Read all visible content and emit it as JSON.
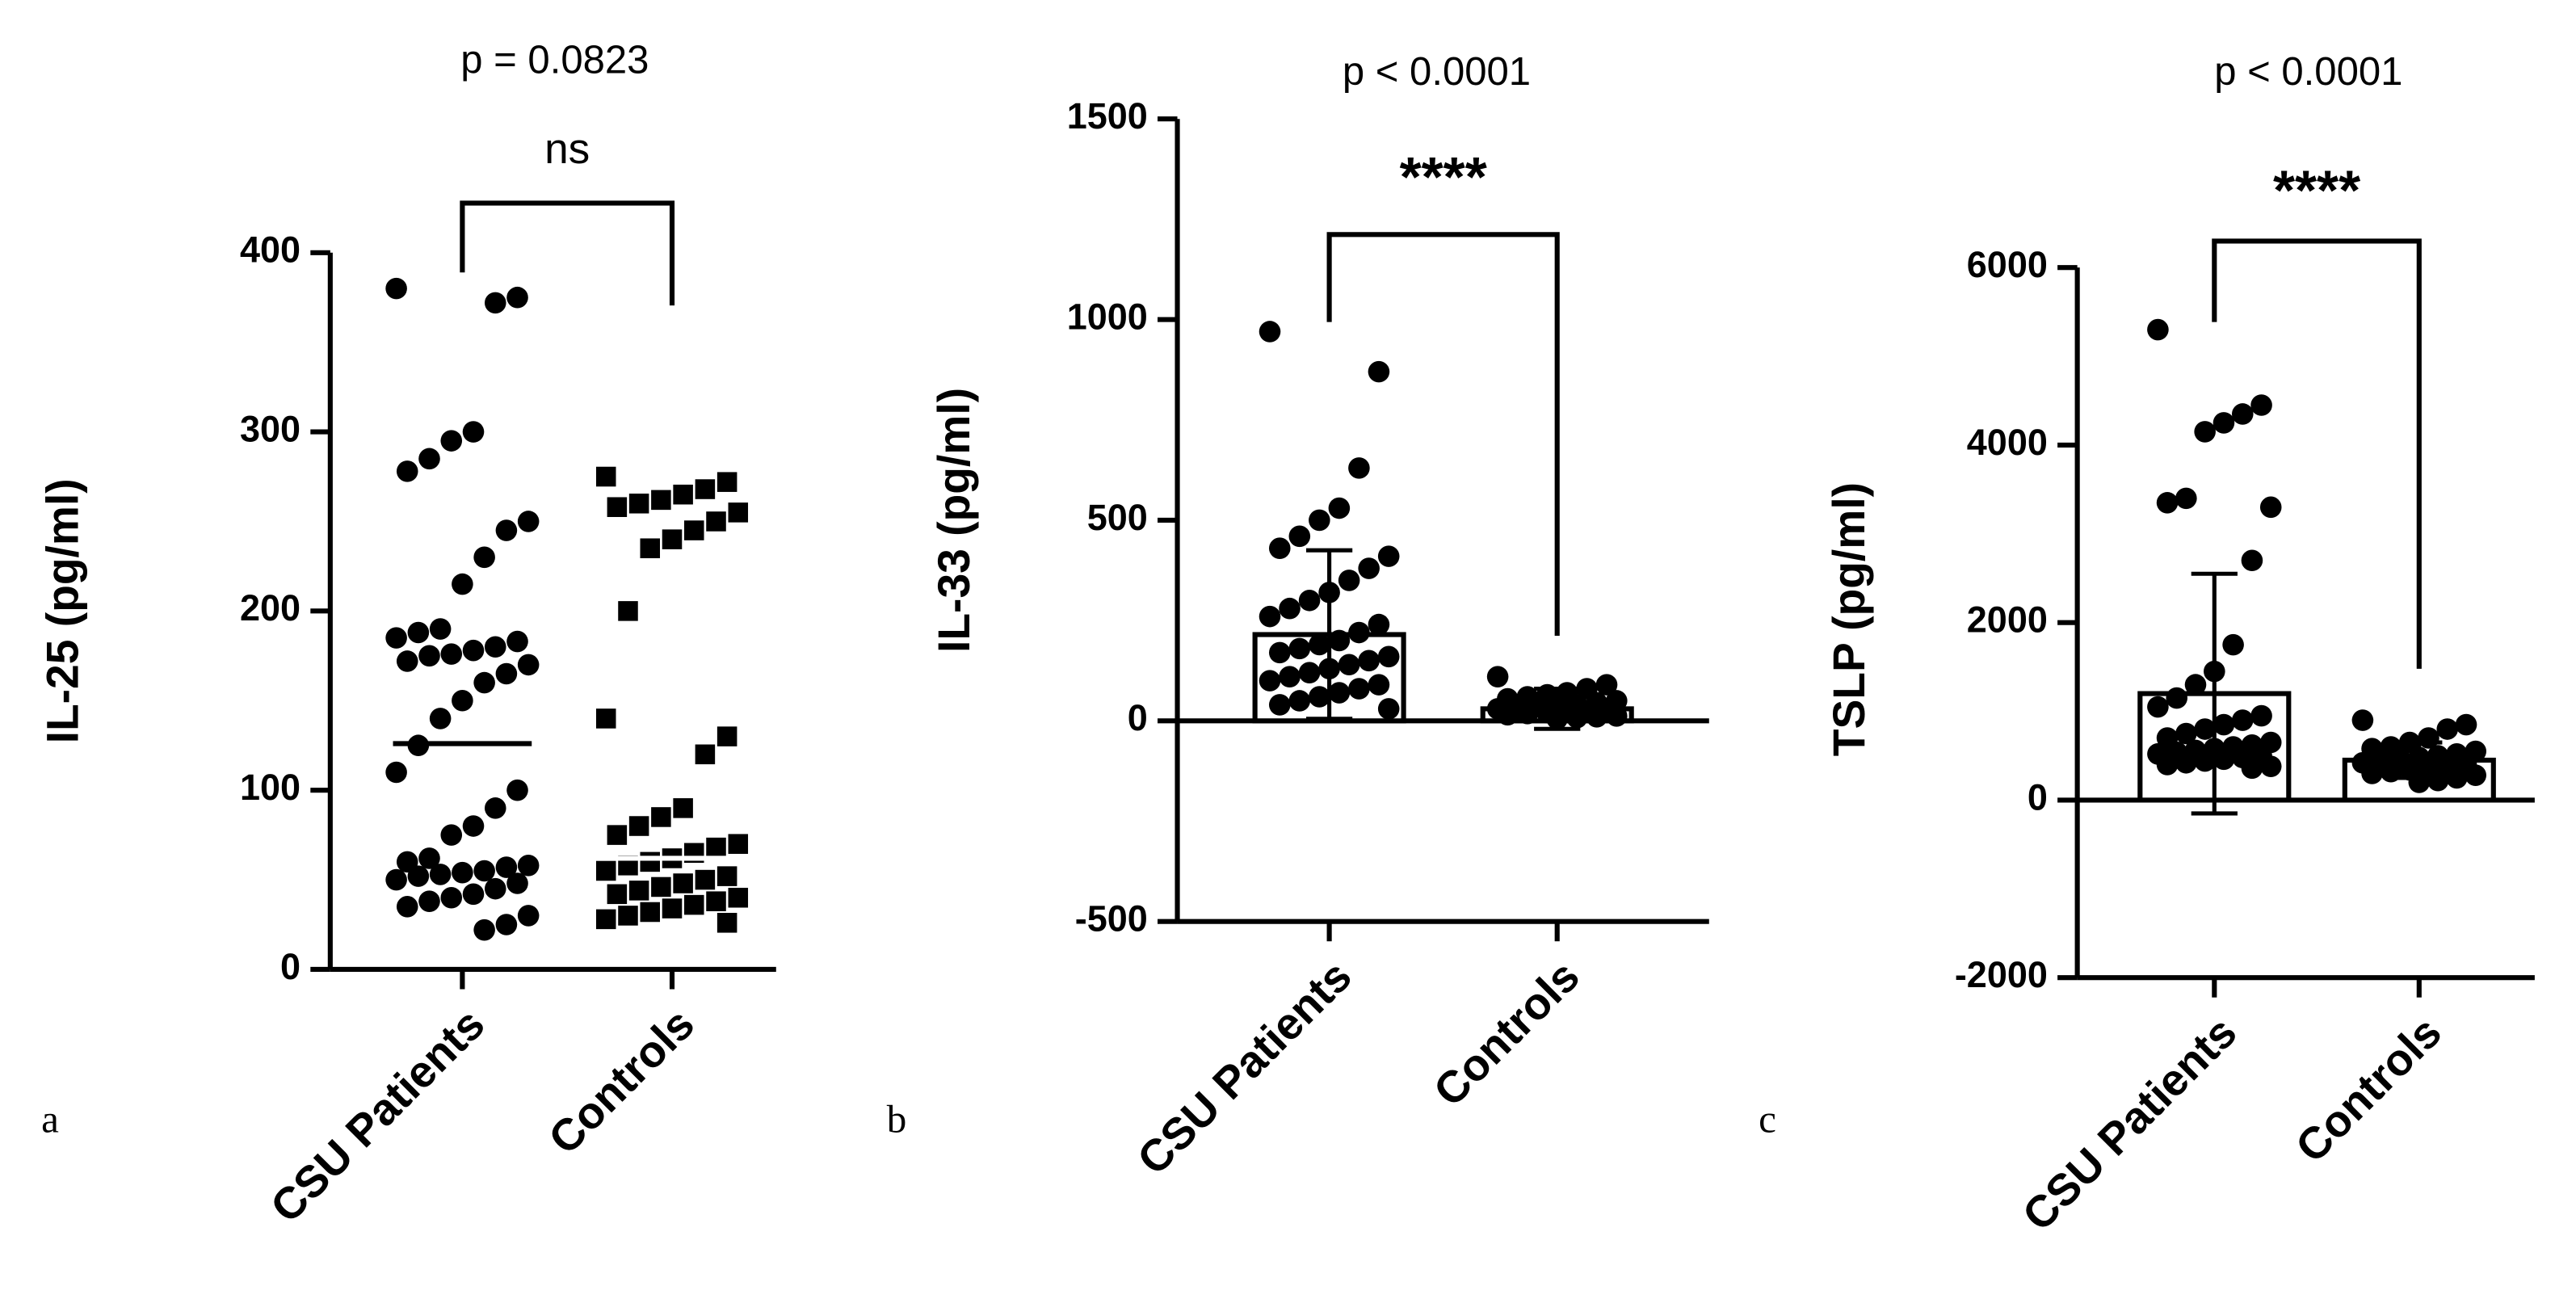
{
  "chart_data": [
    {
      "type": "dotplot",
      "title": "p = 0.0823",
      "annotation": "ns",
      "panel_label": "a",
      "ylabel": "IL-25 (pg/ml)",
      "categories": [
        "CSU Patients",
        "Controls"
      ],
      "medians": [
        126,
        62
      ],
      "points": [
        [
          380,
          375,
          372,
          300,
          295,
          285,
          278,
          250,
          245,
          230,
          215,
          190,
          188,
          185,
          183,
          180,
          178,
          176,
          175,
          172,
          170,
          165,
          160,
          150,
          140,
          125,
          110,
          100,
          90,
          80,
          75,
          62,
          60,
          58,
          57,
          55,
          54,
          53,
          52,
          50,
          48,
          45,
          42,
          40,
          38,
          35,
          30,
          25,
          22
        ],
        [
          275,
          272,
          268,
          265,
          262,
          260,
          258,
          255,
          250,
          245,
          240,
          235,
          200,
          140,
          130,
          120,
          90,
          85,
          80,
          75,
          70,
          68,
          65,
          62,
          60,
          58,
          55,
          52,
          50,
          48,
          46,
          44,
          42,
          40,
          38,
          36,
          34,
          32,
          30,
          28,
          26
        ]
      ],
      "ylim": [
        0,
        400
      ],
      "yticks": [
        0,
        100,
        200,
        300,
        400
      ]
    },
    {
      "type": "bar",
      "title": "p < 0.0001",
      "annotation": "****",
      "panel_label": "b",
      "ylabel": "IL-33 (pg/ml)",
      "categories": [
        "CSU Patients",
        "Controls"
      ],
      "values": [
        215,
        30
      ],
      "errors": [
        210,
        50
      ],
      "points": [
        [
          970,
          870,
          630,
          530,
          500,
          460,
          430,
          410,
          380,
          350,
          320,
          300,
          280,
          260,
          240,
          220,
          200,
          190,
          180,
          170,
          160,
          150,
          140,
          130,
          120,
          110,
          100,
          90,
          80,
          70,
          60,
          50,
          40,
          30
        ],
        [
          110,
          90,
          80,
          70,
          65,
          60,
          55,
          50,
          45,
          40,
          38,
          35,
          32,
          30,
          28,
          25,
          22,
          20,
          18,
          15,
          12,
          10,
          8,
          5
        ]
      ],
      "ylim": [
        -500,
        1500
      ],
      "yticks": [
        -500,
        0,
        500,
        1000,
        1500
      ]
    },
    {
      "type": "bar",
      "title": "p < 0.0001",
      "annotation": "****",
      "panel_label": "c",
      "ylabel": "TSLP (pg/ml)",
      "categories": [
        "CSU Patients",
        "Controls"
      ],
      "values": [
        1200,
        450
      ],
      "errors": [
        1350,
        200
      ],
      "points": [
        [
          5300,
          4450,
          4350,
          4250,
          4150,
          3400,
          3350,
          3300,
          2700,
          1750,
          1450,
          1300,
          1150,
          1050,
          950,
          900,
          850,
          800,
          750,
          700,
          650,
          620,
          600,
          580,
          560,
          540,
          520,
          500,
          480,
          460,
          440,
          420,
          400,
          380,
          360
        ],
        [
          900,
          850,
          800,
          700,
          650,
          600,
          580,
          550,
          520,
          500,
          480,
          460,
          440,
          420,
          400,
          380,
          360,
          340,
          320,
          300,
          280,
          250,
          220,
          200
        ]
      ],
      "ylim": [
        -2000,
        6000
      ],
      "yticks": [
        -2000,
        0,
        2000,
        4000,
        6000
      ]
    }
  ]
}
